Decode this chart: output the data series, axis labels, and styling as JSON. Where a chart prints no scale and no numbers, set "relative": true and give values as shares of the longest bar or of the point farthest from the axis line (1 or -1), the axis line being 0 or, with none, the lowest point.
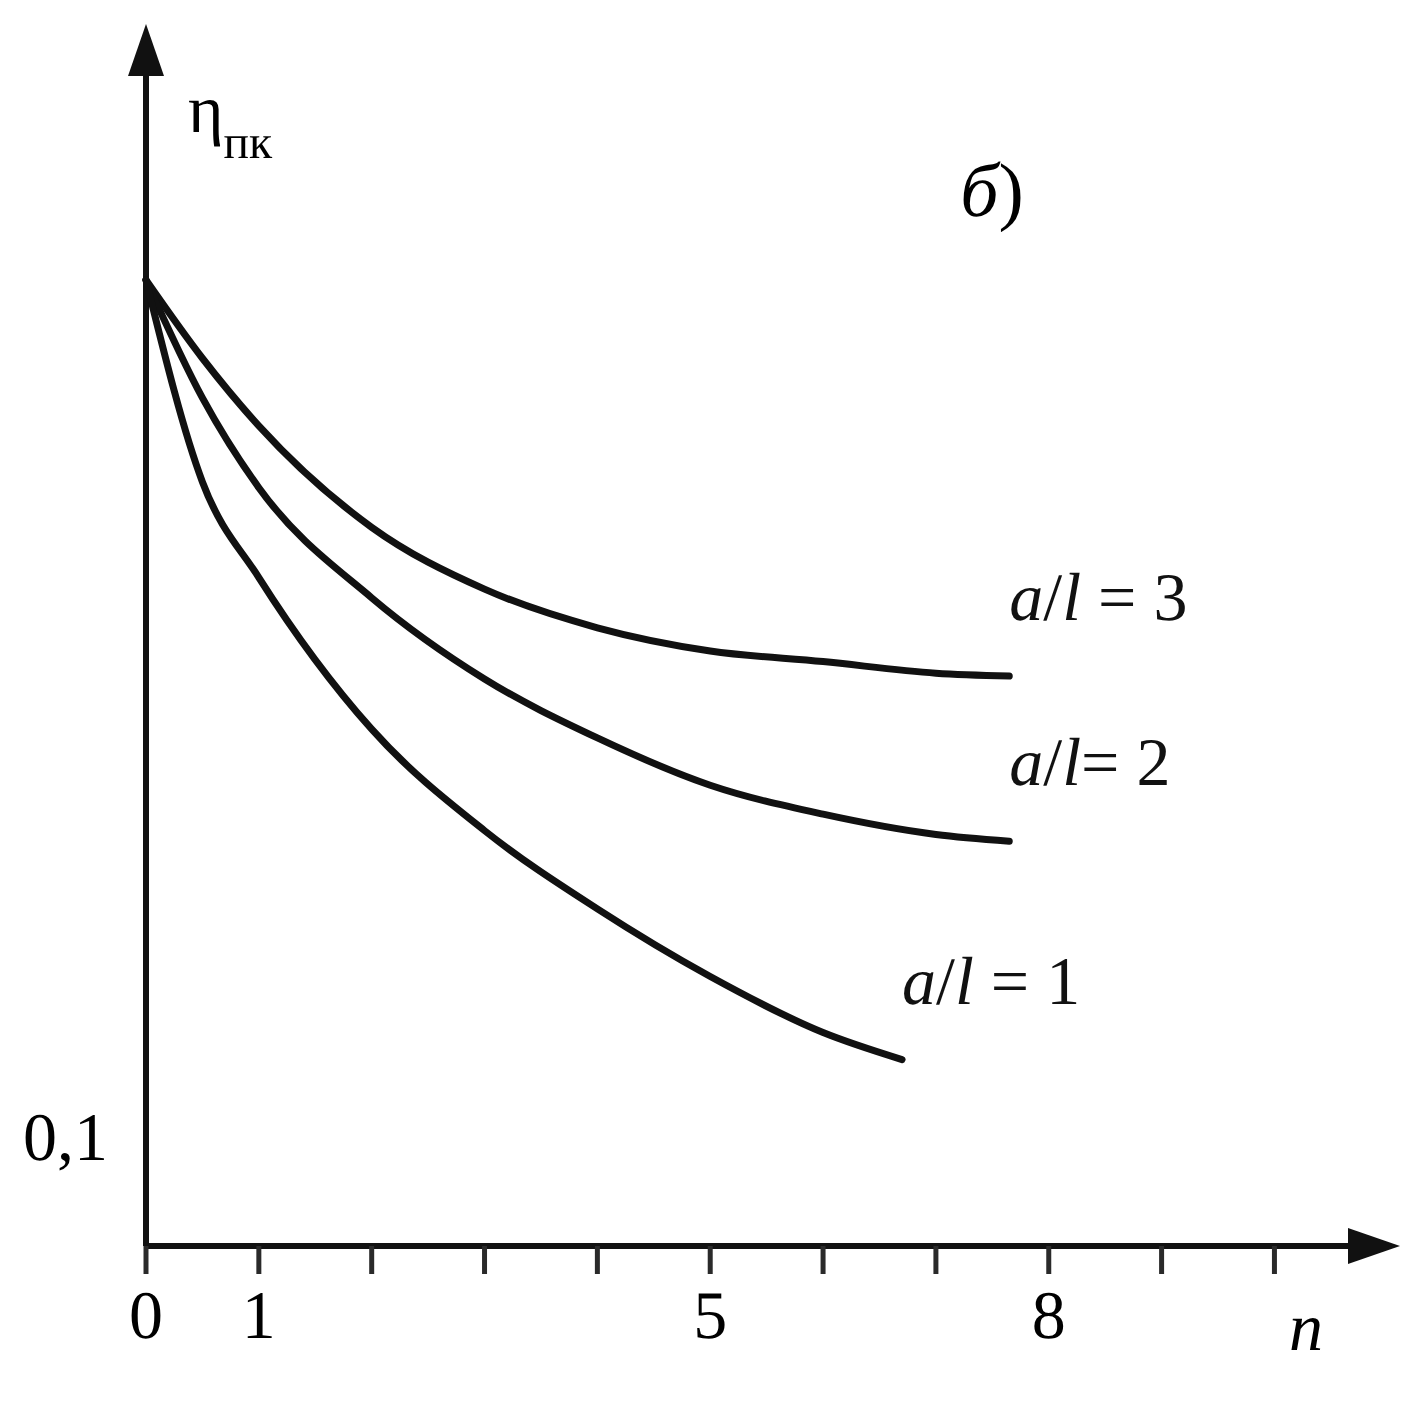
{
  "chart_data": {
    "type": "line",
    "ylabel": "η$_{пк}$",
    "xlabel": "n",
    "annotations": [
      "б)",
      "0,1"
    ],
    "relative": true,
    "xlim": [
      0,
      10.9
    ],
    "xticks": [
      0,
      1,
      {
        "value": 2,
        "label": null
      },
      {
        "value": 3,
        "label": null
      },
      {
        "value": 4,
        "label": null
      },
      5,
      {
        "value": 6,
        "label": null
      },
      {
        "value": 7,
        "label": null
      },
      8,
      {
        "value": 9,
        "label": null
      },
      {
        "value": 10,
        "label": null
      }
    ],
    "grid": false,
    "marker": "none",
    "line_style": "solid",
    "series": [
      {
        "name": "a/l = 3",
        "color": "#111111",
        "x": [
          0,
          0.5,
          1,
          2,
          3,
          4,
          5,
          6,
          7,
          7.65
        ],
        "values": [
          1,
          0.919,
          0.849,
          0.744,
          0.68,
          0.64,
          0.616,
          0.605,
          0.593,
          0.59
        ]
      },
      {
        "name": "a/l= 2",
        "color": "#111111",
        "x": [
          0,
          0.5,
          1,
          2,
          3,
          4,
          5,
          6,
          7,
          7.65
        ],
        "values": [
          1,
          0.878,
          0.785,
          0.671,
          0.587,
          0.526,
          0.477,
          0.447,
          0.426,
          0.419
        ]
      },
      {
        "name": "a/l = 1",
        "color": "#111111",
        "x": [
          0,
          0.5,
          1,
          2,
          3,
          4,
          5,
          6,
          6.7
        ],
        "values": [
          1,
          0.791,
          0.692,
          0.535,
          0.43,
          0.349,
          0.279,
          0.221,
          0.193
        ]
      }
    ]
  }
}
